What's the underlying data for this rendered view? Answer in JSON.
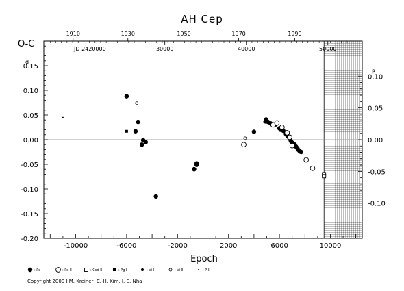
{
  "chart_data": {
    "type": "scatter",
    "title": "AH Cep",
    "xlabel": "Epoch",
    "ylabel": "O-C",
    "xlim": [
      -12500,
      12500
    ],
    "ylim": [
      -0.2,
      0.2
    ],
    "x_ticks": [
      "-10000",
      "-6000",
      "-2000",
      "2000",
      "6000",
      "10000"
    ],
    "x_tick_values": [
      -10000,
      -6000,
      -2000,
      2000,
      6000,
      10000
    ],
    "y_ticks": [
      "0.15",
      "0.10",
      "0.05",
      "0.00",
      "-0.05",
      "-0.10",
      "-0.15",
      "-0.20"
    ],
    "y_tick_values": [
      0.15,
      0.1,
      0.05,
      0.0,
      -0.05,
      -0.1,
      -0.15,
      -0.2
    ],
    "y_tick_prefix": "0",
    "y_tick_superscript": "d",
    "right_axis": {
      "ticks": [
        "0.10",
        "0.05",
        "0.00",
        "-0.05",
        "-0.10"
      ],
      "tick_values": [
        0.1,
        0.05,
        0.0,
        -0.05,
        -0.1
      ],
      "superscript": "P",
      "prefix": "0"
    },
    "top_axis": {
      "years": [
        "1910",
        "1930",
        "1950",
        "1970",
        "1990"
      ],
      "year_epochs": [
        -10200,
        -5900,
        -1500,
        2800,
        7200
      ],
      "jd_label": "JD 2420000",
      "jd_values": [
        "30000",
        "40000",
        "50000"
      ],
      "jd_epochs": [
        -3000,
        3400,
        9800
      ]
    },
    "shaded_region": {
      "x_start": 9500,
      "x_end": 12500
    },
    "zero_line": 0.0,
    "series": [
      {
        "name": "Pe I",
        "marker": "filled-circle-large",
        "points": [
          [
            -6000,
            0.088
          ],
          [
            -5100,
            0.036
          ],
          [
            -5300,
            0.017
          ],
          [
            -4700,
            -0.001
          ],
          [
            -4500,
            -0.005
          ],
          [
            -4800,
            -0.01
          ],
          [
            -500,
            -0.048
          ],
          [
            -500,
            -0.051
          ],
          [
            -700,
            -0.06
          ],
          [
            -3700,
            -0.115
          ],
          [
            4000,
            0.016
          ],
          [
            4900,
            0.037
          ],
          [
            4950,
            0.041
          ],
          [
            5100,
            0.036
          ],
          [
            5300,
            0.033
          ],
          [
            5700,
            0.031
          ],
          [
            6000,
            0.023
          ],
          [
            6100,
            0.02
          ],
          [
            6300,
            0.018
          ],
          [
            6500,
            0.012
          ],
          [
            6600,
            0.009
          ],
          [
            6700,
            0.006
          ],
          [
            6800,
            0.002
          ],
          [
            6900,
            -0.003
          ],
          [
            7000,
            -0.006
          ],
          [
            7100,
            -0.008
          ],
          [
            7200,
            -0.01
          ],
          [
            7300,
            -0.014
          ],
          [
            7400,
            -0.017
          ],
          [
            7500,
            -0.021
          ],
          [
            7600,
            -0.024
          ],
          [
            7700,
            -0.025
          ]
        ]
      },
      {
        "name": "Pe II",
        "marker": "open-circle-large",
        "points": [
          [
            3200,
            -0.01
          ],
          [
            5500,
            0.03
          ],
          [
            6200,
            0.025
          ],
          [
            6800,
            0.005
          ],
          [
            7000,
            -0.012
          ],
          [
            8100,
            -0.041
          ],
          [
            8600,
            -0.058
          ],
          [
            5800,
            0.034
          ],
          [
            6600,
            0.014
          ]
        ]
      },
      {
        "name": "Ccd II",
        "marker": "open-square",
        "points": [
          [
            9500,
            -0.07
          ],
          [
            9500,
            -0.074
          ]
        ]
      },
      {
        "name": "Pg I",
        "marker": "filled-square",
        "points": [
          [
            -6000,
            0.017
          ]
        ]
      },
      {
        "name": "Vi I",
        "marker": "filled-circle-small",
        "points": [
          [
            -4700,
            -0.002
          ],
          [
            -700,
            -0.058
          ]
        ]
      },
      {
        "name": "Vi II",
        "marker": "open-circle-small",
        "points": [
          [
            -5200,
            0.074
          ],
          [
            3300,
            0.003
          ]
        ]
      },
      {
        "name": "P II",
        "marker": "dot",
        "points": [
          [
            -11000,
            0.045
          ]
        ]
      }
    ],
    "legend": [
      {
        "label": ": Pe I",
        "marker": "filled-circle-large"
      },
      {
        "label": ": Pe II",
        "marker": "open-circle-large"
      },
      {
        "label": ": Ccd II",
        "marker": "open-square"
      },
      {
        "label": ": Pg I",
        "marker": "filled-square"
      },
      {
        "label": ": Vi I",
        "marker": "filled-circle-small"
      },
      {
        "label": ": Vi II",
        "marker": "open-circle-small"
      },
      {
        "label": ": P II",
        "marker": "dot"
      }
    ],
    "legend_position": "bottom-left",
    "grid": false
  },
  "footer": {
    "copyright": "Copyright 2000 I.M. Kreiner, C.-H. Kim, I.-S. Nha"
  }
}
